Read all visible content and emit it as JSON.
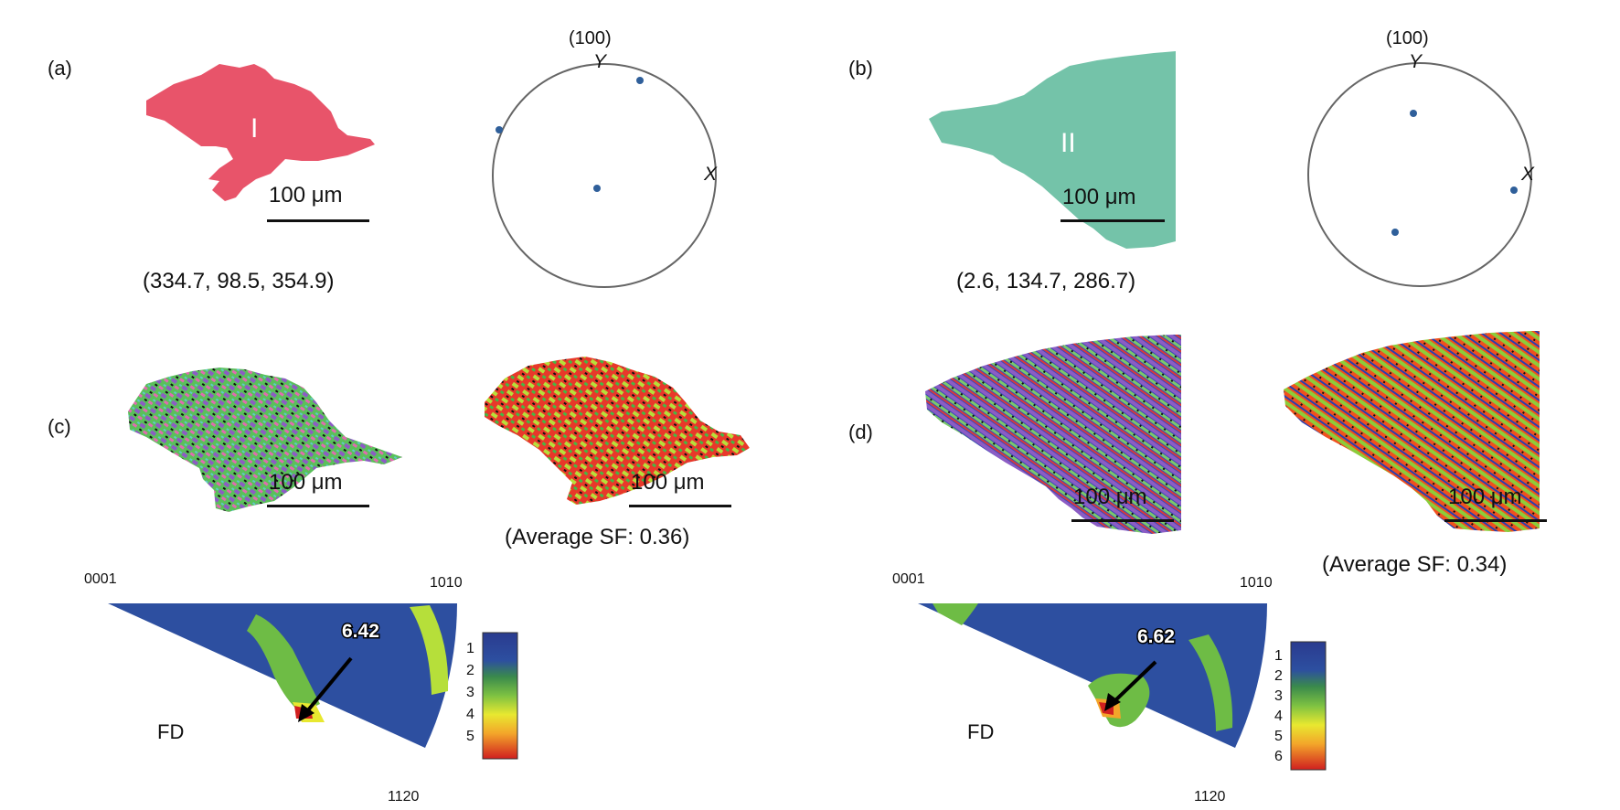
{
  "panels": {
    "a": {
      "label": "(a)",
      "grain": "I",
      "euler": "(334.7, 98.5, 354.9)",
      "pf_title": "(100)",
      "axis_y": "Y",
      "axis_x": "X",
      "grain_color": "#e8546a"
    },
    "b": {
      "label": "(b)",
      "grain": "II",
      "euler": "(2.6, 134.7, 286.7)",
      "pf_title": "(100)",
      "axis_y": "Y",
      "axis_x": "X",
      "grain_color": "#74c3a9"
    },
    "c": {
      "label": "(c)",
      "sf": "(Average SF: 0.36)",
      "peak": "6.42",
      "fd": "FD",
      "c0001": "0001",
      "c1010": "1010",
      "c1120": "1120",
      "colorbar_ticks": [
        "1",
        "2",
        "3",
        "4",
        "5"
      ]
    },
    "d": {
      "label": "(d)",
      "sf": "(Average SF: 0.34)",
      "peak": "6.62",
      "fd": "FD",
      "c0001": "0001",
      "c1010": "1010",
      "c1120": "1120",
      "colorbar_ticks": [
        "1",
        "2",
        "3",
        "4",
        "5",
        "6"
      ]
    }
  },
  "scalebar": "100 μm",
  "point_color": "#2f5f9a"
}
